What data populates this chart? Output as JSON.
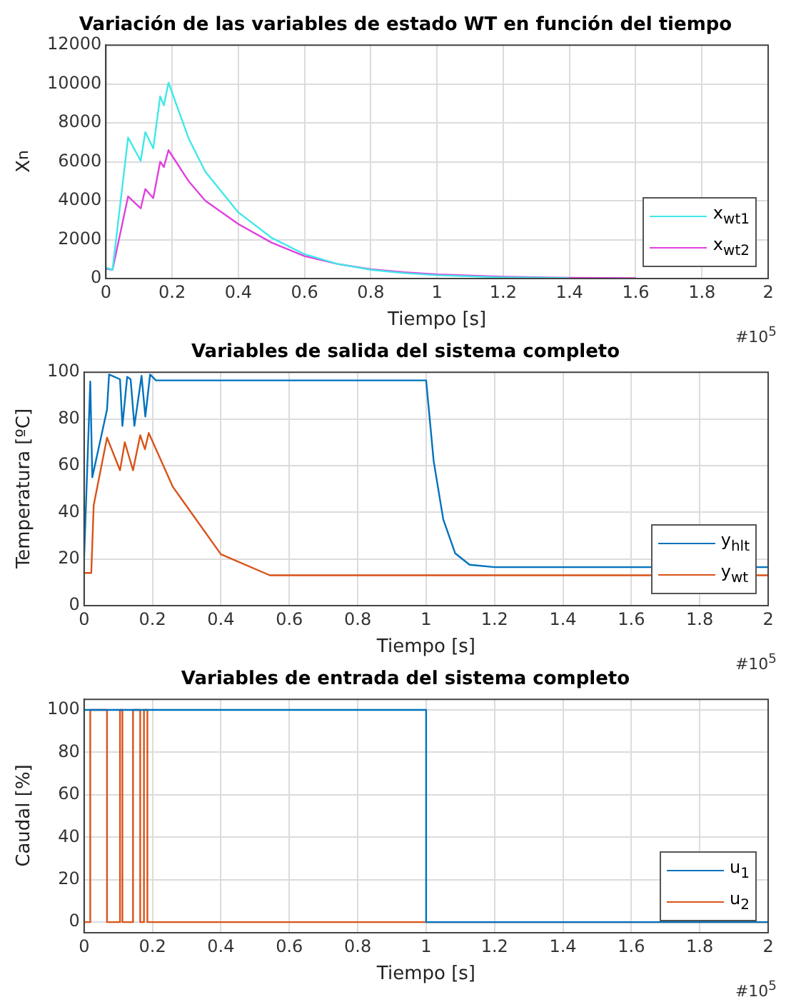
{
  "chart_data": [
    {
      "type": "line",
      "title": "Variación de las variables de estado WT en función del tiempo",
      "xlabel": "Tiempo [s]",
      "ylabel": "X$_{n}$",
      "xlim": [
        0,
        2
      ],
      "xticks": [
        0,
        0.2,
        0.4,
        0.6,
        0.8,
        1,
        1.2,
        1.4,
        1.6,
        1.8,
        2
      ],
      "ylim": [
        0,
        12000
      ],
      "yticks": [
        0,
        2000,
        4000,
        6000,
        8000,
        10000,
        12000
      ],
      "grid": true,
      "legend": "bottom right",
      "annotations": [
        "#10$^{5}$"
      ],
      "series": [
        {
          "name": "x$_{wt1}$",
          "color": "#40e8e8",
          "x": [
            0,
            0.02,
            0.067,
            0.105,
            0.119,
            0.143,
            0.164,
            0.175,
            0.189,
            0.25,
            0.3,
            0.4,
            0.5,
            0.6,
            0.7,
            0.8,
            0.9,
            1.0,
            1.2,
            1.4
          ],
          "values": [
            560,
            450,
            7250,
            6050,
            7530,
            6690,
            9370,
            8900,
            10070,
            7200,
            5500,
            3400,
            2100,
            1250,
            750,
            450,
            280,
            170,
            60,
            20
          ]
        },
        {
          "name": "x$_{wt2}$",
          "color": "#e040e0",
          "x": [
            0,
            0.02,
            0.067,
            0.105,
            0.119,
            0.143,
            0.164,
            0.175,
            0.189,
            0.25,
            0.3,
            0.4,
            0.5,
            0.6,
            0.7,
            0.8,
            0.9,
            1.0,
            1.2,
            1.4,
            1.6
          ],
          "values": [
            500,
            450,
            4220,
            3610,
            4600,
            4130,
            6010,
            5730,
            6600,
            5000,
            4000,
            2800,
            1850,
            1150,
            750,
            480,
            320,
            210,
            90,
            40,
            20
          ]
        }
      ]
    },
    {
      "type": "line",
      "title": "Variables de salida del sistema completo",
      "xlabel": "Tiempo [s]",
      "ylabel": "Temperatura [ºC]",
      "xlim": [
        0,
        2
      ],
      "xticks": [
        0,
        0.2,
        0.4,
        0.6,
        0.8,
        1,
        1.2,
        1.4,
        1.6,
        1.8,
        2
      ],
      "ylim": [
        0,
        100
      ],
      "yticks": [
        0,
        20,
        40,
        60,
        80,
        100
      ],
      "grid": true,
      "legend": "bottom right",
      "annotations": [
        "#10$^{5}$"
      ],
      "series": [
        {
          "name": "y$_{hlt}$",
          "color": "#0072bd",
          "x": [
            0,
            0.018,
            0.024,
            0.067,
            0.073,
            0.105,
            0.112,
            0.126,
            0.136,
            0.147,
            0.168,
            0.179,
            0.193,
            0.21,
            1.0,
            1.022,
            1.05,
            1.085,
            1.127,
            1.2,
            2
          ],
          "values": [
            20,
            96,
            55,
            84,
            99,
            97,
            77,
            98,
            97,
            77,
            98.5,
            81,
            99,
            96.5,
            96.5,
            62,
            37,
            22.4,
            17.5,
            16.5,
            16.5
          ]
        },
        {
          "name": "y$_{wt}$",
          "color": "#d95319",
          "x": [
            0,
            0.021,
            0.028,
            0.067,
            0.105,
            0.119,
            0.143,
            0.164,
            0.178,
            0.189,
            0.259,
            0.4,
            0.543,
            2
          ],
          "values": [
            14,
            14,
            43,
            72,
            58,
            70,
            58,
            73,
            67,
            74,
            51,
            22,
            13,
            13
          ]
        }
      ]
    },
    {
      "type": "line",
      "title": "Variables de entrada del sistema completo",
      "xlabel": "Tiempo [s]",
      "ylabel": "Caudal [%]",
      "xlim": [
        0,
        2
      ],
      "xticks": [
        0,
        0.2,
        0.4,
        0.6,
        0.8,
        1,
        1.2,
        1.4,
        1.6,
        1.8,
        2
      ],
      "ylim": [
        -5,
        105
      ],
      "yticks": [
        0,
        20,
        40,
        60,
        80,
        100
      ],
      "grid": true,
      "legend": "bottom right",
      "annotations": [
        "#10$^{5}$"
      ],
      "series": [
        {
          "name": "u$_{1}$",
          "color": "#0072bd",
          "x": [
            0,
            1,
            1,
            2
          ],
          "values": [
            100,
            100,
            0,
            0
          ]
        },
        {
          "name": "u$_{2}$",
          "color": "#d95319",
          "x": [
            0,
            0.018,
            0.018,
            0.067,
            0.067,
            0.105,
            0.105,
            0.112,
            0.112,
            0.143,
            0.143,
            0.164,
            0.164,
            0.175,
            0.175,
            0.185,
            0.185,
            2
          ],
          "values": [
            0,
            0,
            100,
            100,
            0,
            0,
            100,
            100,
            0,
            0,
            100,
            100,
            0,
            0,
            100,
            100,
            0,
            0
          ]
        }
      ]
    }
  ]
}
